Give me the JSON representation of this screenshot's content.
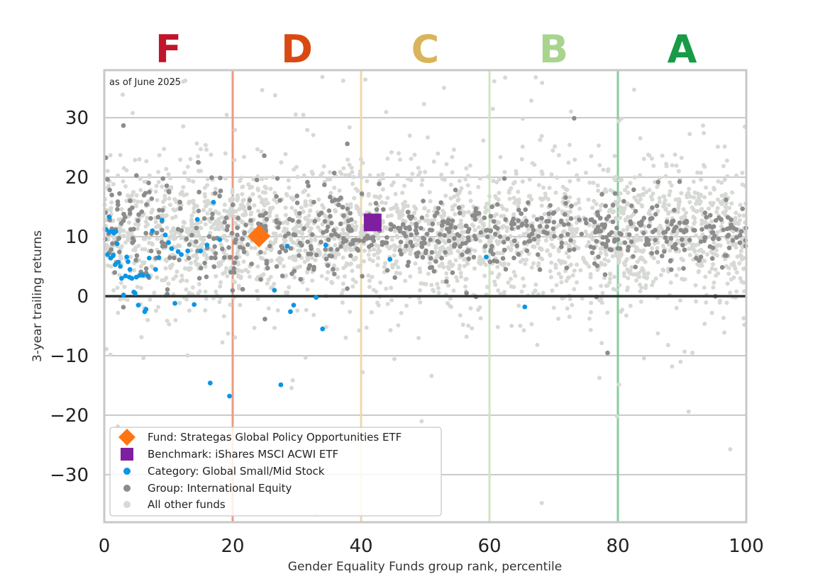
{
  "chart_data": {
    "type": "scatter",
    "title": "",
    "xlabel": "Gender Equality Funds group rank, percentile",
    "ylabel": "3-year trailing returns",
    "xlim": [
      0,
      100
    ],
    "ylim": [
      -38,
      38
    ],
    "x_ticks": [
      0,
      20,
      40,
      60,
      80,
      100
    ],
    "y_ticks": [
      -30,
      -20,
      -10,
      0,
      10,
      20,
      30
    ],
    "grid": "horizontal",
    "note": "as of June 2025",
    "zero_line": 0,
    "grades": [
      {
        "label": "F",
        "x": 10,
        "color": "#c0152a"
      },
      {
        "label": "D",
        "x": 30,
        "color": "#d94a12"
      },
      {
        "label": "C",
        "x": 50,
        "color": "#d9b45a"
      },
      {
        "label": "B",
        "x": 70,
        "color": "#a8d48e"
      },
      {
        "label": "A",
        "x": 90,
        "color": "#189a46"
      }
    ],
    "grade_boundaries": [
      {
        "x": 20,
        "color": "#ee9a80"
      },
      {
        "x": 40,
        "color": "#efd9a8"
      },
      {
        "x": 60,
        "color": "#cfe6c2"
      },
      {
        "x": 80,
        "color": "#86cda0"
      },
      {
        "x": 100,
        "color": "#86cda0"
      }
    ],
    "legend_position": "lower-left",
    "series": [
      {
        "name": "Fund: Strategas Global Policy Opportunities ETF",
        "marker": "diamond",
        "color": "#ff7412",
        "points": [
          [
            24.1,
            10.1
          ]
        ]
      },
      {
        "name": "Benchmark: iShares MSCI ACWI ETF",
        "marker": "square",
        "color": "#7d1fa0",
        "points": [
          [
            41.8,
            12.4
          ]
        ]
      },
      {
        "name": "Category: Global Small/Mid Stock",
        "marker": "dot",
        "color": "#0a96e6",
        "points": [
          [
            0.3,
            11.2
          ],
          [
            0.5,
            7.0
          ],
          [
            0.8,
            10.8
          ],
          [
            0.8,
            13.3
          ],
          [
            1.0,
            6.4
          ],
          [
            1.2,
            10.9
          ],
          [
            1.4,
            6.9
          ],
          [
            1.5,
            10.6
          ],
          [
            1.7,
            5.3
          ],
          [
            1.8,
            10.9
          ],
          [
            2.0,
            8.8
          ],
          [
            2.2,
            5.7
          ],
          [
            2.5,
            5.0
          ],
          [
            2.7,
            3.0
          ],
          [
            3.0,
            0.2
          ],
          [
            3.3,
            3.4
          ],
          [
            3.5,
            6.6
          ],
          [
            3.7,
            5.8
          ],
          [
            3.9,
            3.2
          ],
          [
            4.0,
            4.5
          ],
          [
            4.3,
            3.0
          ],
          [
            4.6,
            0.7
          ],
          [
            4.8,
            0.5
          ],
          [
            5.0,
            3.2
          ],
          [
            5.3,
            -1.5
          ],
          [
            5.5,
            3.5
          ],
          [
            5.8,
            3.6
          ],
          [
            6.0,
            3.5
          ],
          [
            6.3,
            -2.6
          ],
          [
            6.5,
            -2.2
          ],
          [
            6.8,
            3.4
          ],
          [
            7.0,
            6.4
          ],
          [
            7.5,
            11.0
          ],
          [
            8.0,
            4.5
          ],
          [
            8.5,
            6.5
          ],
          [
            9.0,
            12.8
          ],
          [
            9.5,
            10.3
          ],
          [
            10.0,
            9.0
          ],
          [
            10.5,
            8.0
          ],
          [
            11.0,
            -1.2
          ],
          [
            11.5,
            7.5
          ],
          [
            12.0,
            7.0
          ],
          [
            13.0,
            7.6
          ],
          [
            14.0,
            -1.4
          ],
          [
            14.5,
            12.9
          ],
          [
            15.0,
            7.6
          ],
          [
            16.0,
            8.6
          ],
          [
            16.5,
            -14.6
          ],
          [
            17.0,
            15.8
          ],
          [
            18.0,
            9.5
          ],
          [
            19.5,
            -16.8
          ],
          [
            26.5,
            1.0
          ],
          [
            27.5,
            -14.9
          ],
          [
            28.5,
            8.4
          ],
          [
            29.0,
            -2.6
          ],
          [
            29.5,
            -1.5
          ],
          [
            33.0,
            -0.2
          ],
          [
            34.0,
            -5.5
          ],
          [
            34.5,
            8.6
          ],
          [
            44.5,
            6.2
          ],
          [
            59.5,
            6.6
          ],
          [
            65.5,
            -1.8
          ]
        ]
      },
      {
        "name": "Group: International Equity",
        "marker": "dot",
        "color": "#8c8c8c",
        "generated": true,
        "count": 700,
        "center": 10.5,
        "spread": 2.5
      },
      {
        "name": "All other funds",
        "marker": "dot",
        "color": "#d6d9d4",
        "generated": true,
        "count": 2600,
        "center": 10.5,
        "spread": 6.0
      }
    ]
  },
  "legend": {
    "items": [
      {
        "label": "Fund: Strategas Global Policy Opportunities ETF",
        "marker": "diamond",
        "color": "#ff7412"
      },
      {
        "label": "Benchmark: iShares MSCI ACWI ETF",
        "marker": "square",
        "color": "#7d1fa0"
      },
      {
        "label": "Category: Global Small/Mid Stock",
        "marker": "dot",
        "color": "#0a96e6"
      },
      {
        "label": "Group: International Equity",
        "marker": "dot",
        "color": "#8c8c8c"
      },
      {
        "label": "All other funds",
        "marker": "dot",
        "color": "#d6d9d4"
      }
    ]
  }
}
